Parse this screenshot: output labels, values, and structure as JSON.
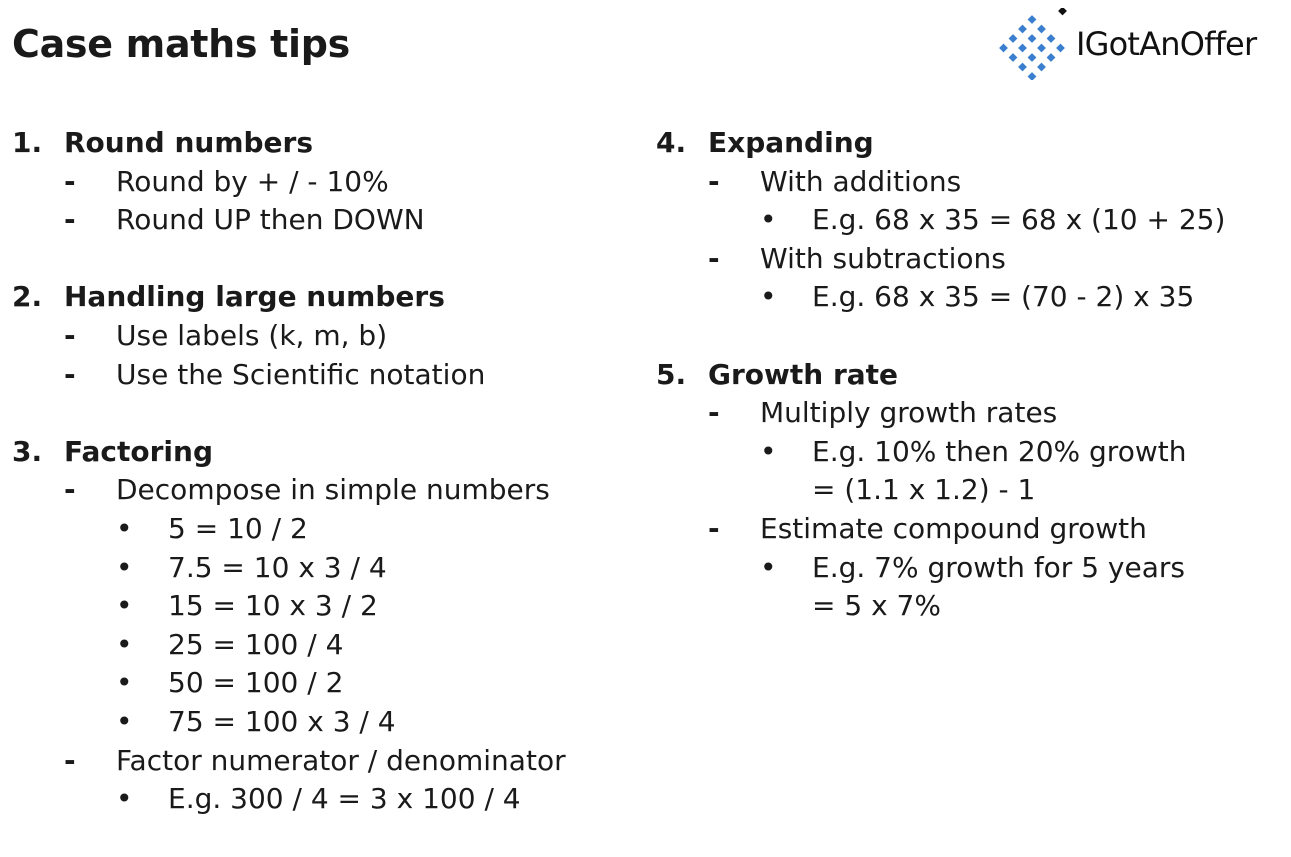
{
  "title": "Case maths tips",
  "logo": {
    "name": "IGotAnOffer",
    "icon": "diamond-grid-icon",
    "colors": {
      "tile": "#3a7fcf",
      "dot": "#111111"
    }
  },
  "markers": {
    "dash": "-",
    "bullet": "•"
  },
  "sections": [
    {
      "num": "1.",
      "heading": "Round numbers",
      "items": [
        {
          "text": "Round by + / - 10%"
        },
        {
          "text": "Round UP then DOWN"
        }
      ]
    },
    {
      "num": "2.",
      "heading": "Handling large numbers",
      "items": [
        {
          "text": "Use labels (k, m, b)"
        },
        {
          "text": "Use the Scientific notation"
        }
      ]
    },
    {
      "num": "3.",
      "heading": "Factoring",
      "items": [
        {
          "text": "Decompose in simple numbers",
          "sub": [
            {
              "text": "5 = 10 / 2"
            },
            {
              "text": "7.5 = 10 x 3 / 4"
            },
            {
              "text": "15 = 10 x 3 / 2"
            },
            {
              "text": "25 = 100 / 4"
            },
            {
              "text": "50 = 100 / 2"
            },
            {
              "text": "75 = 100 x 3 / 4"
            }
          ]
        },
        {
          "text": "Factor numerator / denominator",
          "sub": [
            {
              "text": "E.g. 300 / 4 = 3 x 100 / 4"
            }
          ]
        }
      ]
    },
    {
      "num": "4.",
      "heading": "Expanding",
      "items": [
        {
          "text": "With additions",
          "sub": [
            {
              "text": "E.g. 68 x 35 = 68 x (10 + 25)"
            }
          ]
        },
        {
          "text": "With subtractions",
          "sub": [
            {
              "text": "E.g. 68 x 35 = (70 - 2) x 35"
            }
          ]
        }
      ]
    },
    {
      "num": "5.",
      "heading": "Growth rate",
      "items": [
        {
          "text": "Multiply growth rates",
          "sub": [
            {
              "text": "E.g. 10% then 20% growth",
              "cont": "= (1.1 x 1.2) - 1"
            }
          ]
        },
        {
          "text": "Estimate compound growth",
          "sub": [
            {
              "text": "E.g. 7% growth for 5 years",
              "cont": "=  5 x 7%"
            }
          ]
        }
      ]
    }
  ]
}
